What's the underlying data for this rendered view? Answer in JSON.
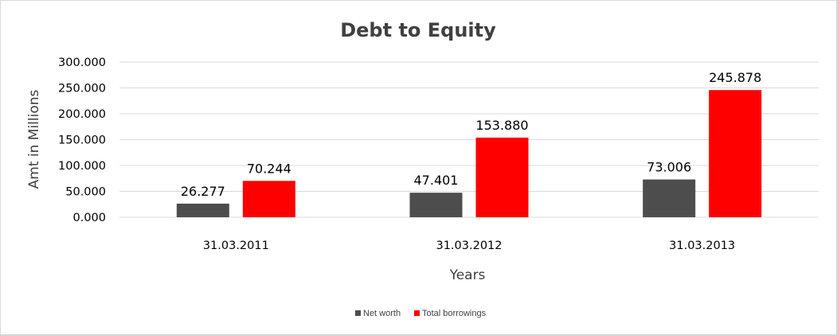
{
  "chart_data": {
    "type": "bar",
    "title": "Debt to Equity",
    "xlabel": "Years",
    "ylabel": "Amt in Millions",
    "categories": [
      "31.03.2011",
      "31.03.2012",
      "31.03.2013"
    ],
    "series": [
      {
        "name": "Net worth",
        "color": "#4d4d4d",
        "values": [
          26.277,
          47.401,
          73.006
        ],
        "labels": [
          "26.277",
          "47.401",
          "73.006"
        ]
      },
      {
        "name": "Total borrowings",
        "color": "#ff0000",
        "values": [
          70.244,
          153.88,
          245.878
        ],
        "labels": [
          "70.244",
          "153.880",
          "245.878"
        ]
      }
    ],
    "ylim": [
      0,
      300
    ],
    "yticks": [
      {
        "value": 0,
        "label": "0.000"
      },
      {
        "value": 50,
        "label": "50.000"
      },
      {
        "value": 100,
        "label": "100.000"
      },
      {
        "value": 150,
        "label": "150.000"
      },
      {
        "value": 200,
        "label": "200.000"
      },
      {
        "value": 250,
        "label": "250.000"
      },
      {
        "value": 300,
        "label": "300.000"
      }
    ],
    "grid": true,
    "legend_position": "bottom",
    "gridline_color": "#d9d9d9"
  }
}
